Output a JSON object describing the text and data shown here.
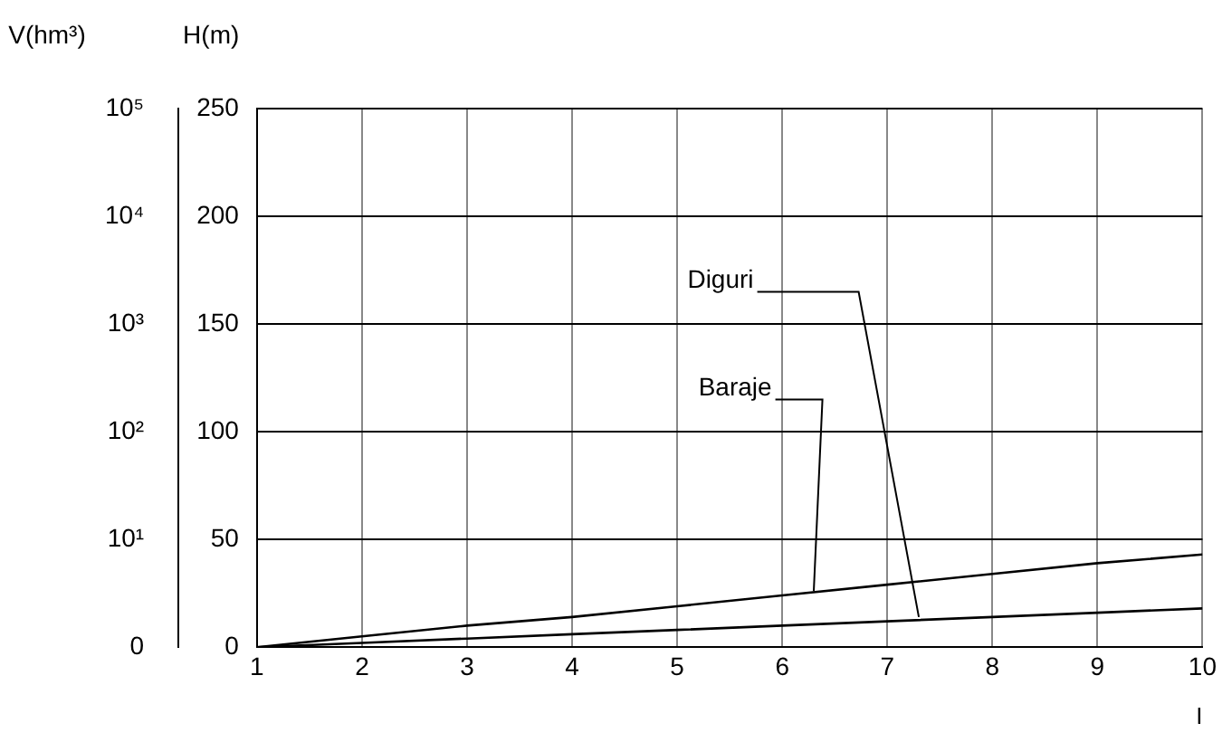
{
  "chart_data": {
    "type": "line",
    "xlabel": "I",
    "ylabel": "H(m)",
    "y2label": "V(hm³)",
    "x": [
      1,
      2,
      3,
      4,
      5,
      6,
      7,
      8,
      9,
      10
    ],
    "series": [
      {
        "name": "Baraje",
        "color": "#000000",
        "values": [
          0,
          5,
          10,
          14,
          19,
          24,
          29,
          34,
          39,
          43
        ]
      },
      {
        "name": "Diguri",
        "color": "#000000",
        "values": [
          0,
          2,
          4,
          6,
          8,
          10,
          12,
          14,
          16,
          18
        ]
      }
    ],
    "xlim": [
      1,
      10
    ],
    "xticks": [
      1,
      2,
      3,
      4,
      5,
      6,
      7,
      8,
      9,
      10
    ],
    "ylim": [
      0,
      250
    ],
    "yticks": [
      0,
      50,
      100,
      150,
      200,
      250
    ],
    "log": "y2",
    "y2lim": [
      0,
      100000
    ],
    "y2ticks": [
      0,
      {
        "value": 10,
        "label": "10¹"
      },
      {
        "value": 100,
        "label": "10²"
      },
      {
        "value": 1000,
        "label": "10³"
      },
      {
        "value": 10000,
        "label": "10⁴"
      },
      {
        "value": 100000,
        "label": "10⁵"
      }
    ],
    "grid": true,
    "legend": false,
    "marker": "none",
    "line_style": "solid"
  }
}
